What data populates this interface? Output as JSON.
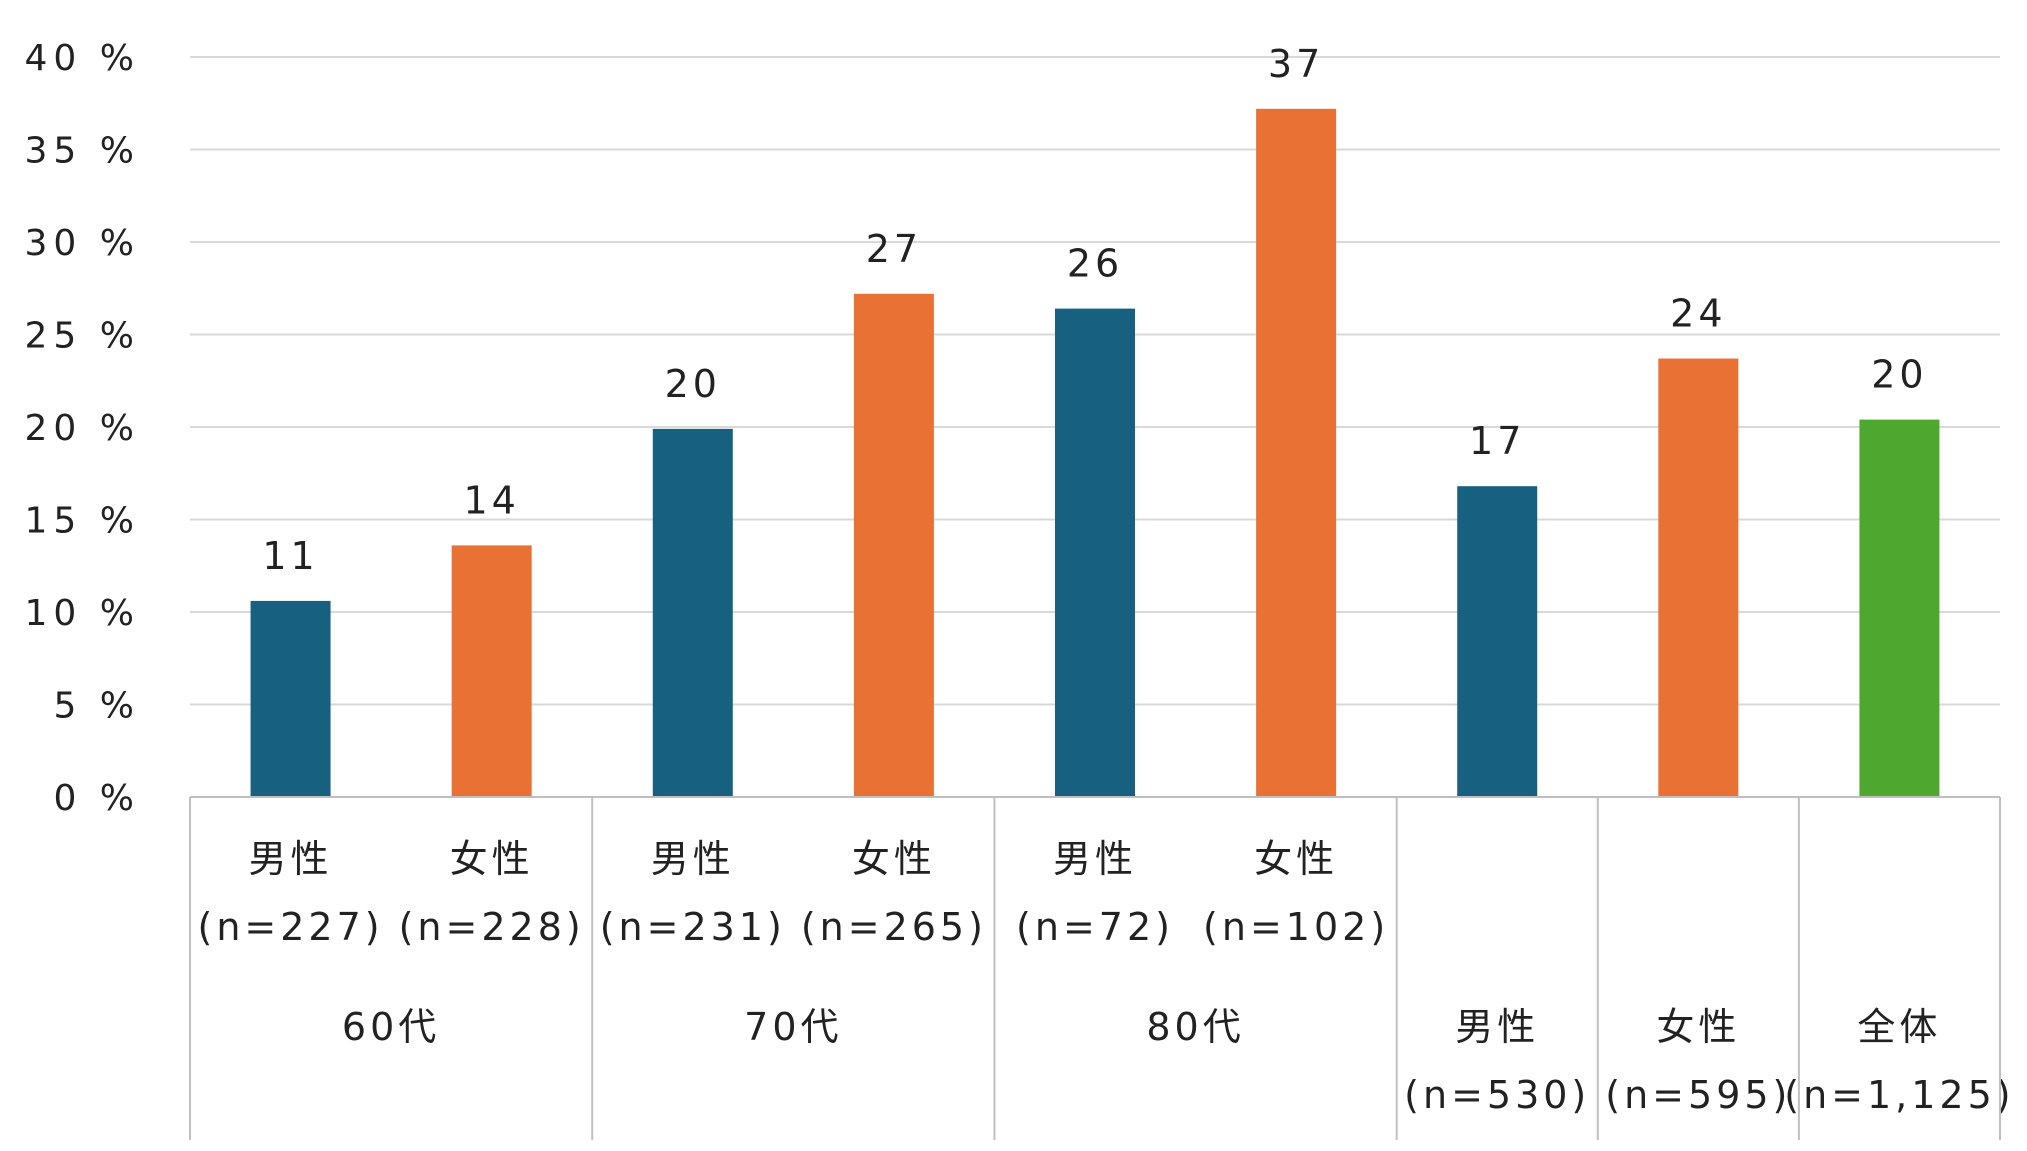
{
  "chart_data": {
    "type": "bar",
    "y_axis": {
      "min": 0,
      "max": 40,
      "step": 5,
      "tick_labels": [
        "0 %",
        "5 %",
        "10 %",
        "15 %",
        "20 %",
        "25 %",
        "30 %",
        "35 %",
        "40 %"
      ]
    },
    "grid": true,
    "bars": [
      {
        "gender": "男性",
        "n": "(n=227)",
        "value": 10.6,
        "label": "11",
        "group": 0,
        "color": "#17607f"
      },
      {
        "gender": "女性",
        "n": "(n=228)",
        "value": 13.6,
        "label": "14",
        "group": 0,
        "color": "#e97133"
      },
      {
        "gender": "男性",
        "n": "(n=231)",
        "value": 19.9,
        "label": "20",
        "group": 1,
        "color": "#17607f"
      },
      {
        "gender": "女性",
        "n": "(n=265)",
        "value": 27.2,
        "label": "27",
        "group": 1,
        "color": "#e97133"
      },
      {
        "gender": "男性",
        "n": "(n=72)",
        "value": 26.4,
        "label": "26",
        "group": 2,
        "color": "#17607f"
      },
      {
        "gender": "女性",
        "n": "(n=102)",
        "value": 37.2,
        "label": "37",
        "group": 2,
        "color": "#e97133"
      },
      {
        "gender": "男性",
        "n": "(n=530)",
        "value": 16.8,
        "label": "17",
        "group": null,
        "color": "#17607f"
      },
      {
        "gender": "女性",
        "n": "(n=595)",
        "value": 23.7,
        "label": "24",
        "group": null,
        "color": "#e97133"
      },
      {
        "gender": "全体",
        "n": "(n=1,125)",
        "value": 20.4,
        "label": "20",
        "group": null,
        "color": "#4ea72e"
      }
    ],
    "groups": [
      {
        "label": "60代"
      },
      {
        "label": "70代"
      },
      {
        "label": "80代"
      }
    ]
  }
}
